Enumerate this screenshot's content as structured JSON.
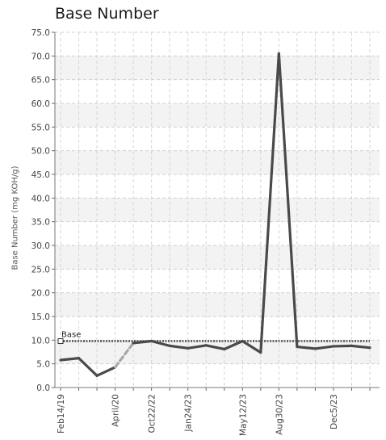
{
  "chart_data": {
    "type": "line",
    "title": "Base Number",
    "ylabel": "Base Number (mg KOH/g)",
    "xlabel": "",
    "ylim": [
      0,
      75
    ],
    "y_ticks": [
      "0.0",
      "5.0",
      "10.0",
      "15.0",
      "20.0",
      "25.0",
      "30.0",
      "35.0",
      "40.0",
      "45.0",
      "50.0",
      "55.0",
      "60.0",
      "65.0",
      "70.0",
      "75.0"
    ],
    "x_tick_labels": [
      "Feb14/19",
      "April/20",
      "Oct22/22",
      "Jan24/23",
      "May12/23",
      "Aug30/23",
      "Dec5/23"
    ],
    "grid": true,
    "series": [
      {
        "type": "sample",
        "color": "#4a4a4a",
        "points": [
          {
            "x": "Feb14/19",
            "y": 5.8
          },
          {
            "x": "",
            "y": 6.2
          },
          {
            "x": "",
            "y": 2.5
          },
          {
            "x": "April/20",
            "y": 4.3
          },
          {
            "x": "",
            "y": 9.4
          },
          {
            "x": "Oct22/22",
            "y": 9.8
          },
          {
            "x": "",
            "y": 8.8
          },
          {
            "x": "Jan24/23",
            "y": 8.3
          },
          {
            "x": "",
            "y": 8.9
          },
          {
            "x": "",
            "y": 8.1
          },
          {
            "x": "May12/23",
            "y": 9.8
          },
          {
            "x": "",
            "y": 7.4
          },
          {
            "x": "Aug30/23",
            "y": 70.5
          },
          {
            "x": "",
            "y": 8.6
          },
          {
            "x": "",
            "y": 8.2
          },
          {
            "x": "Dec5/23",
            "y": 8.7
          },
          {
            "x": "",
            "y": 8.8
          },
          {
            "x": "",
            "y": 8.4
          }
        ],
        "dashed_segments": [
          [
            3,
            4
          ]
        ]
      }
    ],
    "baseline": {
      "label": "Base",
      "value": 9.8,
      "color": "#555555"
    }
  }
}
